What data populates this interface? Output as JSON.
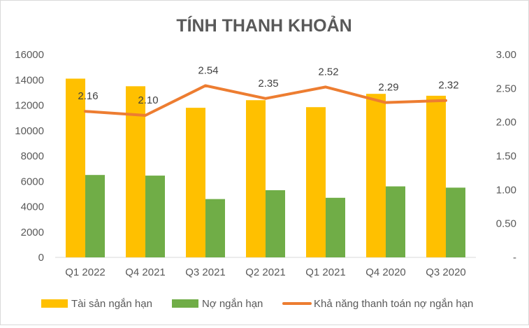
{
  "chart_data": {
    "type": "bar",
    "title": "TÍNH THANH KHOẢN",
    "categories": [
      "Q1 2022",
      "Q4 2021",
      "Q3 2021",
      "Q2 2021",
      "Q1 2021",
      "Q4 2020",
      "Q3 2020"
    ],
    "series": [
      {
        "name": "Tài sản ngắn hạn",
        "type": "bar",
        "axis": "left",
        "color": "#ffc000",
        "values": [
          14100,
          13500,
          11800,
          12400,
          11850,
          12900,
          12750
        ]
      },
      {
        "name": "Nợ ngắn hạn",
        "type": "bar",
        "axis": "left",
        "color": "#70ad47",
        "values": [
          6500,
          6450,
          4600,
          5300,
          4700,
          5600,
          5500
        ]
      },
      {
        "name": "Khả năng thanh toán nợ ngắn hạn",
        "type": "line",
        "axis": "right",
        "color": "#ed7d31",
        "values": [
          2.16,
          2.1,
          2.54,
          2.35,
          2.52,
          2.29,
          2.32
        ],
        "labels": [
          "2.16",
          "2.10",
          "2.54",
          "2.35",
          "2.52",
          "2.29",
          "2.32"
        ]
      }
    ],
    "y_left": {
      "min": 0,
      "max": 16000,
      "ticks": [
        "0",
        "2000",
        "4000",
        "6000",
        "8000",
        "10000",
        "12000",
        "14000",
        "16000"
      ]
    },
    "y_right": {
      "min": 0,
      "max": 3,
      "ticks": [
        "-",
        "0.50",
        "1.00",
        "1.50",
        "2.00",
        "2.50",
        "3.00"
      ]
    },
    "grid": false,
    "legend_position": "bottom"
  }
}
